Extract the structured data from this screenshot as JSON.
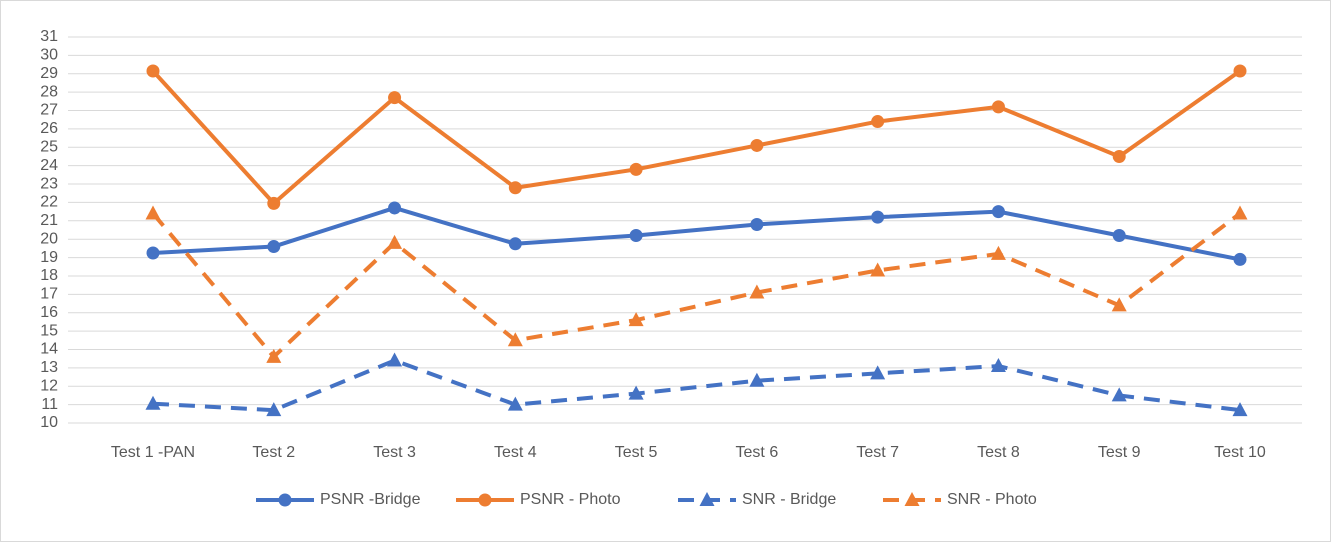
{
  "chart_data": {
    "type": "line",
    "categories": [
      "Test 1 -PAN",
      "Test 2",
      "Test 3",
      "Test 4",
      "Test 5",
      "Test 6",
      "Test 7",
      "Test 8",
      "Test 9",
      "Test 10"
    ],
    "series": [
      {
        "name": "PSNR -Bridge",
        "color": "#4472c4",
        "marker": "circle",
        "dashed": false,
        "values": [
          19.25,
          19.6,
          21.7,
          19.75,
          20.2,
          20.8,
          21.2,
          21.5,
          20.2,
          18.9
        ]
      },
      {
        "name": "PSNR - Photo",
        "color": "#ed7d31",
        "marker": "circle",
        "dashed": false,
        "values": [
          29.15,
          21.95,
          27.7,
          22.8,
          23.8,
          25.1,
          26.4,
          27.2,
          24.5,
          29.15
        ]
      },
      {
        "name": "SNR - Bridge",
        "color": "#4472c4",
        "marker": "triangle",
        "dashed": true,
        "values": [
          11.05,
          10.7,
          13.4,
          11.0,
          11.6,
          12.3,
          12.7,
          13.1,
          11.5,
          10.7
        ]
      },
      {
        "name": "SNR - Photo",
        "color": "#ed7d31",
        "marker": "triangle",
        "dashed": true,
        "values": [
          21.4,
          13.6,
          19.8,
          14.5,
          15.6,
          17.1,
          18.3,
          19.2,
          16.4,
          21.4
        ]
      }
    ],
    "ylim": [
      10,
      31
    ],
    "yticks": [
      10,
      11,
      12,
      13,
      14,
      15,
      16,
      17,
      18,
      19,
      20,
      21,
      22,
      23,
      24,
      25,
      26,
      27,
      28,
      29,
      30,
      31
    ],
    "grid": true,
    "legend": "bottom"
  }
}
